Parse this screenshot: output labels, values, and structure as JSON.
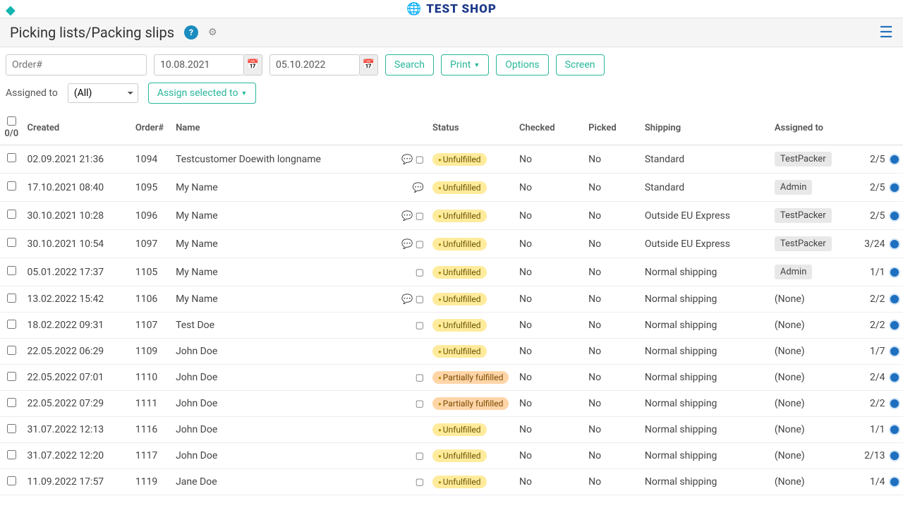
{
  "shop_name": "TEST SHOP",
  "page_title": "Picking lists/Packing slips",
  "filters": {
    "order_placeholder": "Order#",
    "date_from": "10.08.2021",
    "date_to": "05.10.2022",
    "search": "Search",
    "print": "Print",
    "options": "Options",
    "screen": "Screen",
    "assigned_label": "Assigned to",
    "assigned_value": "(All)",
    "assign_selected": "Assign selected to"
  },
  "columns": {
    "count": "0/0",
    "created": "Created",
    "order": "Order#",
    "name": "Name",
    "status": "Status",
    "checked": "Checked",
    "picked": "Picked",
    "shipping": "Shipping",
    "assigned": "Assigned to"
  },
  "status_colors": {
    "Unfulfilled": "bg-unf",
    "Partially fulfilled": "bg-part"
  },
  "rows": [
    {
      "created": "02.09.2021 21:36",
      "order": "1094",
      "name": "Testcustomer Doewith longname",
      "chat": true,
      "note": true,
      "status": "Unfulfilled",
      "checked": "No",
      "picked": "No",
      "shipping": "Standard",
      "assigned": "TestPacker",
      "count": "2/5"
    },
    {
      "created": "17.10.2021 08:40",
      "order": "1095",
      "name": "My Name",
      "chat": true,
      "note": false,
      "status": "Unfulfilled",
      "checked": "No",
      "picked": "No",
      "shipping": "Standard",
      "assigned": "Admin",
      "count": "2/5"
    },
    {
      "created": "30.10.2021 10:28",
      "order": "1096",
      "name": "My Name",
      "chat": true,
      "note": true,
      "status": "Unfulfilled",
      "checked": "No",
      "picked": "No",
      "shipping": "Outside EU Express",
      "assigned": "TestPacker",
      "count": "2/5"
    },
    {
      "created": "30.10.2021 10:54",
      "order": "1097",
      "name": "My Name",
      "chat": true,
      "note": true,
      "status": "Unfulfilled",
      "checked": "No",
      "picked": "No",
      "shipping": "Outside EU Express",
      "assigned": "TestPacker",
      "count": "3/24"
    },
    {
      "created": "05.01.2022 17:37",
      "order": "1105",
      "name": "My Name",
      "chat": false,
      "note": true,
      "status": "Unfulfilled",
      "checked": "No",
      "picked": "No",
      "shipping": "Normal shipping",
      "assigned": "Admin",
      "count": "1/1"
    },
    {
      "created": "13.02.2022 15:42",
      "order": "1106",
      "name": "My Name",
      "chat": true,
      "note": true,
      "status": "Unfulfilled",
      "checked": "No",
      "picked": "No",
      "shipping": "Normal shipping",
      "assigned": "(None)",
      "count": "2/2"
    },
    {
      "created": "18.02.2022 09:31",
      "order": "1107",
      "name": "Test Doe",
      "chat": false,
      "note": true,
      "status": "Unfulfilled",
      "checked": "No",
      "picked": "No",
      "shipping": "Normal shipping",
      "assigned": "(None)",
      "count": "2/2"
    },
    {
      "created": "22.05.2022 06:29",
      "order": "1109",
      "name": "John Doe",
      "chat": false,
      "note": false,
      "status": "Unfulfilled",
      "checked": "No",
      "picked": "No",
      "shipping": "Normal shipping",
      "assigned": "(None)",
      "count": "1/7"
    },
    {
      "created": "22.05.2022 07:01",
      "order": "1110",
      "name": "John Doe",
      "chat": false,
      "note": true,
      "status": "Partially fulfilled",
      "checked": "No",
      "picked": "No",
      "shipping": "Normal shipping",
      "assigned": "(None)",
      "count": "2/4"
    },
    {
      "created": "22.05.2022 07:29",
      "order": "1111",
      "name": "John Doe",
      "chat": false,
      "note": true,
      "status": "Partially fulfilled",
      "checked": "No",
      "picked": "No",
      "shipping": "Normal shipping",
      "assigned": "(None)",
      "count": "2/2"
    },
    {
      "created": "31.07.2022 12:13",
      "order": "1116",
      "name": "John Doe",
      "chat": false,
      "note": false,
      "status": "Unfulfilled",
      "checked": "No",
      "picked": "No",
      "shipping": "Normal shipping",
      "assigned": "(None)",
      "count": "1/1"
    },
    {
      "created": "31.07.2022 12:20",
      "order": "1117",
      "name": "John Doe",
      "chat": false,
      "note": true,
      "status": "Unfulfilled",
      "checked": "No",
      "picked": "No",
      "shipping": "Normal shipping",
      "assigned": "(None)",
      "count": "2/13"
    },
    {
      "created": "11.09.2022 17:57",
      "order": "1119",
      "name": "Jane Doe",
      "chat": false,
      "note": true,
      "status": "Unfulfilled",
      "checked": "No",
      "picked": "No",
      "shipping": "Normal shipping",
      "assigned": "(None)",
      "count": "1/4"
    }
  ]
}
